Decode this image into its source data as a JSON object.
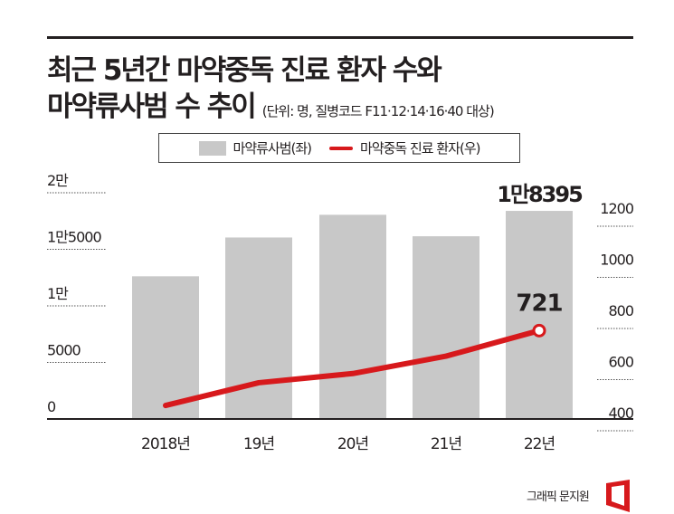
{
  "title": {
    "line1": "최근 5년간 마약중독 진료 환자 수와",
    "line2": "마약류사범 수 추이",
    "unit_note": "(단위: 명, 질병코드 F11·12·14·16·40 대상)"
  },
  "legend": {
    "bar_label": "마약류사범(좌)",
    "line_label": "마약중독 진료 환자(우)"
  },
  "credit": "그래픽 문지원",
  "colors": {
    "bar": "#c8c8c8",
    "line": "#d7191c",
    "text": "#231f20"
  },
  "chart_data": {
    "type": "bar+line",
    "categories": [
      "2018년",
      "19년",
      "20년",
      "21년",
      "22년"
    ],
    "series": [
      {
        "name": "마약류사범(좌)",
        "type": "bar",
        "axis": "left",
        "values": [
          12613,
          16044,
          18050,
          16153,
          18395
        ]
      },
      {
        "name": "마약중독 진료 환자(우)",
        "type": "line",
        "axis": "right",
        "values": [
          428,
          517,
          553,
          621,
          721
        ]
      }
    ],
    "left_axis": {
      "ylim": [
        0,
        20000
      ],
      "ticks": [
        0,
        5000,
        10000,
        15000,
        20000
      ],
      "tick_labels": [
        "0",
        "5000",
        "1만",
        "1만5000",
        "2만"
      ]
    },
    "right_axis": {
      "ylim": [
        400,
        1200
      ],
      "ticks": [
        400,
        600,
        800,
        1000,
        1200
      ],
      "tick_labels": [
        "400",
        "600",
        "800",
        "1000",
        "1200"
      ]
    },
    "data_labels": {
      "bar_last": "1만8395",
      "line_last": "721"
    },
    "grid": false,
    "legend_position": "top-center"
  }
}
